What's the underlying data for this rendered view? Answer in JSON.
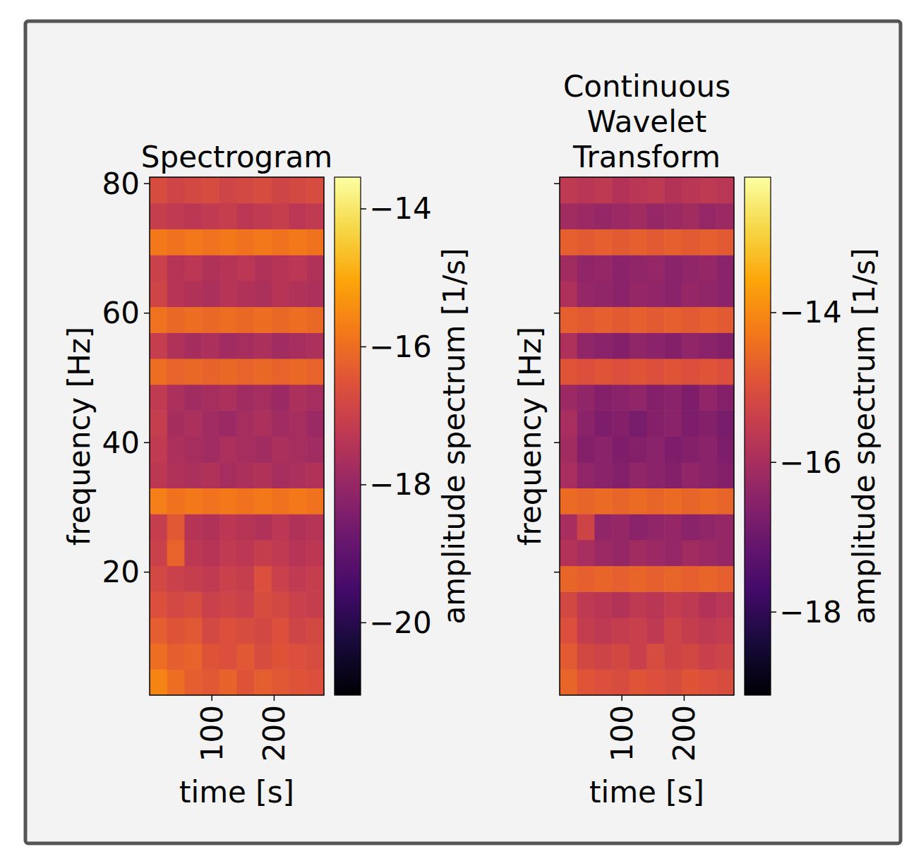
{
  "chart_data": [
    {
      "type": "heatmap",
      "title": "Spectrogram",
      "xlabel": "time [s]",
      "ylabel": "frequency [Hz]",
      "xlim": [
        0,
        280
      ],
      "ylim": [
        1,
        81
      ],
      "xticks": [
        100,
        200
      ],
      "yticks": [
        20,
        40,
        60,
        80
      ],
      "x_bins": [
        0,
        28,
        56,
        84,
        112,
        140,
        168,
        196,
        224,
        252,
        280
      ],
      "y_bins": [
        1,
        5,
        9,
        13,
        17,
        21,
        25,
        29,
        33,
        37,
        41,
        45,
        49,
        53,
        57,
        61,
        65,
        69,
        73,
        77,
        81
      ],
      "cells": [
        [
          -15.6,
          -16.0,
          -16.3,
          -16.4,
          -16.2,
          -16.5,
          -16.3,
          -16.4,
          -16.5,
          -16.6
        ],
        [
          -16.0,
          -16.3,
          -16.2,
          -16.5,
          -16.6,
          -16.4,
          -16.7,
          -16.5,
          -16.6,
          -16.7
        ],
        [
          -16.3,
          -16.5,
          -16.4,
          -16.8,
          -16.6,
          -16.7,
          -16.8,
          -16.6,
          -16.9,
          -16.8
        ],
        [
          -16.6,
          -16.8,
          -16.7,
          -17.0,
          -16.9,
          -17.0,
          -16.7,
          -16.8,
          -17.0,
          -17.1
        ],
        [
          -16.8,
          -17.0,
          -17.1,
          -17.2,
          -17.0,
          -17.1,
          -16.6,
          -17.0,
          -17.2,
          -17.1
        ],
        [
          -17.0,
          -16.2,
          -17.3,
          -17.4,
          -17.2,
          -17.3,
          -17.1,
          -17.2,
          -17.4,
          -17.3
        ],
        [
          -17.1,
          -16.4,
          -17.4,
          -17.5,
          -17.3,
          -17.4,
          -17.5,
          -17.3,
          -17.5,
          -17.4
        ],
        [
          -15.7,
          -15.9,
          -15.8,
          -15.9,
          -15.8,
          -15.9,
          -15.8,
          -15.9,
          -15.8,
          -15.9
        ],
        [
          -17.3,
          -17.5,
          -17.6,
          -17.5,
          -17.7,
          -17.6,
          -17.5,
          -17.7,
          -17.6,
          -17.5
        ],
        [
          -17.2,
          -17.6,
          -17.7,
          -17.8,
          -17.6,
          -17.7,
          -17.8,
          -17.6,
          -17.7,
          -17.8
        ],
        [
          -17.1,
          -17.7,
          -17.6,
          -17.8,
          -17.9,
          -17.7,
          -17.6,
          -17.8,
          -17.7,
          -17.9
        ],
        [
          -17.2,
          -17.6,
          -17.8,
          -17.7,
          -17.6,
          -17.8,
          -17.7,
          -17.9,
          -17.6,
          -17.7
        ],
        [
          -16.0,
          -16.2,
          -16.1,
          -16.2,
          -16.1,
          -16.2,
          -16.1,
          -16.2,
          -16.1,
          -16.2
        ],
        [
          -17.1,
          -17.5,
          -17.7,
          -17.6,
          -17.8,
          -17.7,
          -17.6,
          -17.8,
          -17.7,
          -17.6
        ],
        [
          -15.9,
          -16.1,
          -16.0,
          -16.1,
          -16.0,
          -16.1,
          -16.0,
          -16.1,
          -16.0,
          -16.1
        ],
        [
          -16.9,
          -17.4,
          -17.5,
          -17.6,
          -17.4,
          -17.5,
          -17.6,
          -17.4,
          -17.5,
          -17.6
        ],
        [
          -17.0,
          -17.4,
          -17.3,
          -17.5,
          -17.4,
          -17.3,
          -17.5,
          -17.4,
          -17.3,
          -17.5
        ],
        [
          -15.8,
          -15.9,
          -15.8,
          -15.9,
          -15.8,
          -15.9,
          -15.8,
          -15.9,
          -15.8,
          -15.9
        ],
        [
          -17.1,
          -17.2,
          -17.3,
          -17.2,
          -17.1,
          -17.3,
          -17.2,
          -17.1,
          -17.3,
          -17.2
        ],
        [
          -16.7,
          -16.9,
          -16.8,
          -16.7,
          -16.9,
          -16.8,
          -16.7,
          -16.9,
          -16.8,
          -16.7
        ]
      ],
      "colorbar": {
        "label": "amplitude spectrum [1/s]",
        "lim": [
          -21.05,
          -13.54
        ],
        "ticks": [
          {
            "value": -20,
            "label": "−20"
          },
          {
            "value": -18,
            "label": "−18"
          },
          {
            "value": -16,
            "label": "−16"
          },
          {
            "value": -14,
            "label": "−14"
          }
        ]
      }
    },
    {
      "type": "heatmap",
      "title": "Continuous Wavelet Transform",
      "xlabel": "time [s]",
      "ylabel": "frequency [Hz]",
      "xlim": [
        0,
        280
      ],
      "ylim": [
        1,
        81
      ],
      "xticks": [
        100,
        200
      ],
      "yticks": [
        20,
        40,
        60,
        80
      ],
      "tick_labels": "x",
      "x_bins": [
        0,
        28,
        56,
        84,
        112,
        140,
        168,
        196,
        224,
        252,
        280
      ],
      "y_bins": [
        1,
        5,
        9,
        13,
        17,
        21,
        25,
        29,
        33,
        37,
        41,
        45,
        49,
        53,
        57,
        61,
        65,
        69,
        73,
        77,
        81
      ],
      "cells": [
        [
          -14.6,
          -14.9,
          -15.0,
          -15.1,
          -14.9,
          -15.0,
          -15.1,
          -14.9,
          -15.0,
          -15.1
        ],
        [
          -14.8,
          -15.2,
          -15.3,
          -15.2,
          -15.4,
          -15.1,
          -15.3,
          -15.2,
          -15.4,
          -15.3
        ],
        [
          -15.0,
          -15.5,
          -15.6,
          -15.5,
          -15.4,
          -15.6,
          -15.3,
          -15.5,
          -15.6,
          -15.5
        ],
        [
          -15.2,
          -15.6,
          -15.7,
          -15.8,
          -15.6,
          -15.7,
          -15.5,
          -15.6,
          -15.8,
          -15.7
        ],
        [
          -14.6,
          -14.7,
          -14.6,
          -14.7,
          -14.6,
          -14.7,
          -14.6,
          -14.7,
          -14.6,
          -14.7
        ],
        [
          -15.8,
          -16.0,
          -16.2,
          -16.3,
          -16.1,
          -16.2,
          -16.3,
          -16.1,
          -16.2,
          -16.3
        ],
        [
          -16.0,
          -15.3,
          -16.4,
          -16.3,
          -16.5,
          -16.4,
          -16.3,
          -16.5,
          -16.4,
          -16.3
        ],
        [
          -14.5,
          -14.6,
          -14.5,
          -14.6,
          -14.5,
          -14.6,
          -14.5,
          -14.6,
          -14.5,
          -14.6
        ],
        [
          -16.0,
          -16.4,
          -16.5,
          -16.6,
          -16.4,
          -16.5,
          -16.6,
          -16.4,
          -16.5,
          -16.6
        ],
        [
          -16.1,
          -16.6,
          -16.5,
          -16.7,
          -16.6,
          -16.5,
          -16.7,
          -16.6,
          -16.5,
          -16.7
        ],
        [
          -16.0,
          -16.5,
          -16.7,
          -16.6,
          -16.8,
          -16.6,
          -16.5,
          -16.7,
          -16.6,
          -16.8
        ],
        [
          -16.2,
          -16.4,
          -16.6,
          -16.5,
          -16.4,
          -16.6,
          -16.5,
          -16.7,
          -16.4,
          -16.6
        ],
        [
          -14.9,
          -15.0,
          -14.9,
          -15.0,
          -14.9,
          -15.0,
          -14.9,
          -15.0,
          -14.9,
          -15.0
        ],
        [
          -15.9,
          -16.4,
          -16.5,
          -16.6,
          -16.4,
          -16.5,
          -16.6,
          -16.4,
          -16.5,
          -16.6
        ],
        [
          -14.7,
          -14.8,
          -14.7,
          -14.8,
          -14.7,
          -14.8,
          -14.7,
          -14.8,
          -14.7,
          -14.8
        ],
        [
          -15.9,
          -16.3,
          -16.4,
          -16.5,
          -16.3,
          -16.4,
          -16.5,
          -16.3,
          -16.4,
          -16.5
        ],
        [
          -16.1,
          -16.4,
          -16.3,
          -16.5,
          -16.4,
          -16.3,
          -16.5,
          -16.4,
          -16.3,
          -16.5
        ],
        [
          -14.7,
          -14.8,
          -14.7,
          -14.8,
          -14.7,
          -14.8,
          -14.7,
          -14.8,
          -14.7,
          -14.8
        ],
        [
          -16.1,
          -16.2,
          -16.3,
          -16.2,
          -16.1,
          -16.3,
          -16.2,
          -16.1,
          -16.3,
          -16.2
        ],
        [
          -15.6,
          -15.7,
          -15.6,
          -15.8,
          -15.7,
          -15.6,
          -15.8,
          -15.7,
          -15.6,
          -15.7
        ]
      ],
      "colorbar": {
        "label": "amplitude spectrum [1/s]",
        "lim": [
          -19.11,
          -12.19
        ],
        "ticks": [
          {
            "value": -18,
            "label": "−18"
          },
          {
            "value": -16,
            "label": "−16"
          },
          {
            "value": -14,
            "label": "−14"
          }
        ]
      }
    }
  ]
}
